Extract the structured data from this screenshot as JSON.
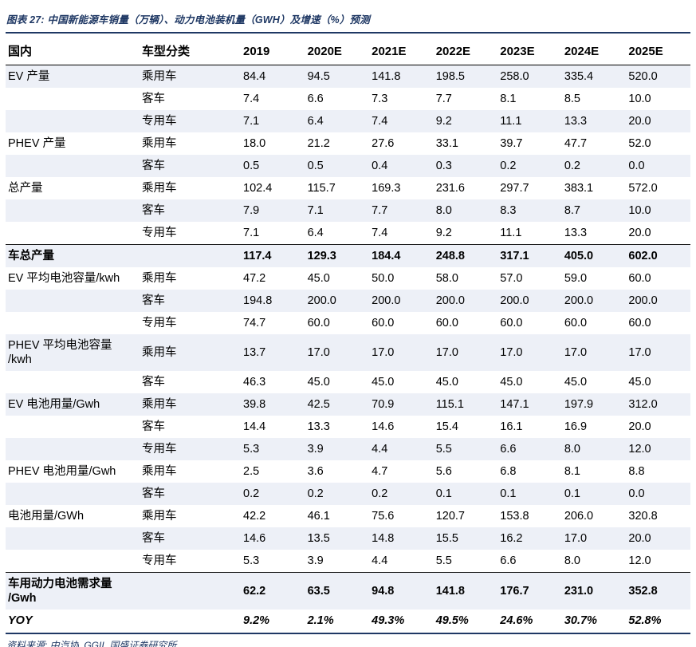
{
  "title": "图表 27:  中国新能源车销量（万辆）、动力电池装机量（GWH）及增速（%）预测",
  "source": "资料来源: 中汽协, GGII, 国盛证券研究所",
  "colors": {
    "accent": "#1f3864",
    "stripe": "#edf0f7",
    "text": "#000000",
    "rule": "#1a1a1a"
  },
  "chart_data": {
    "type": "table",
    "title": "中国新能源车销量（万辆）、动力电池装机量（GWH）及增速（%）预测",
    "headers": [
      "国内",
      "车型分类",
      "2019",
      "2020E",
      "2021E",
      "2022E",
      "2023E",
      "2024E",
      "2025E"
    ],
    "rows": [
      {
        "group": "EV 产量",
        "type": "乘用车",
        "values": [
          "84.4",
          "94.5",
          "141.8",
          "198.5",
          "258.0",
          "335.4",
          "520.0"
        ]
      },
      {
        "group": "",
        "type": "客车",
        "values": [
          "7.4",
          "6.6",
          "7.3",
          "7.7",
          "8.1",
          "8.5",
          "10.0"
        ]
      },
      {
        "group": "",
        "type": "专用车",
        "values": [
          "7.1",
          "6.4",
          "7.4",
          "9.2",
          "11.1",
          "13.3",
          "20.0"
        ]
      },
      {
        "group": "PHEV 产量",
        "type": "乘用车",
        "values": [
          "18.0",
          "21.2",
          "27.6",
          "33.1",
          "39.7",
          "47.7",
          "52.0"
        ]
      },
      {
        "group": "",
        "type": "客车",
        "values": [
          "0.5",
          "0.5",
          "0.4",
          "0.3",
          "0.2",
          "0.2",
          "0.0"
        ]
      },
      {
        "group": "总产量",
        "type": "乘用车",
        "values": [
          "102.4",
          "115.7",
          "169.3",
          "231.6",
          "297.7",
          "383.1",
          "572.0"
        ]
      },
      {
        "group": "",
        "type": "客车",
        "values": [
          "7.9",
          "7.1",
          "7.7",
          "8.0",
          "8.3",
          "8.7",
          "10.0"
        ]
      },
      {
        "group": "",
        "type": "专用车",
        "values": [
          "7.1",
          "6.4",
          "7.4",
          "9.2",
          "11.1",
          "13.3",
          "20.0"
        ]
      },
      {
        "group": "车总产量",
        "type": "",
        "values": [
          "117.4",
          "129.3",
          "184.4",
          "248.8",
          "317.1",
          "405.0",
          "602.0"
        ],
        "bold": true,
        "border_top": true
      },
      {
        "group": "EV 平均电池容量/kwh",
        "type": "乘用车",
        "values": [
          "47.2",
          "45.0",
          "50.0",
          "58.0",
          "57.0",
          "59.0",
          "60.0"
        ]
      },
      {
        "group": "",
        "type": "客车",
        "values": [
          "194.8",
          "200.0",
          "200.0",
          "200.0",
          "200.0",
          "200.0",
          "200.0"
        ]
      },
      {
        "group": "",
        "type": "专用车",
        "values": [
          "74.7",
          "60.0",
          "60.0",
          "60.0",
          "60.0",
          "60.0",
          "60.0"
        ]
      },
      {
        "group": "PHEV 平均电池容量\n/kwh",
        "type": "乘用车",
        "values": [
          "13.7",
          "17.0",
          "17.0",
          "17.0",
          "17.0",
          "17.0",
          "17.0"
        ]
      },
      {
        "group": "",
        "type": "客车",
        "values": [
          "46.3",
          "45.0",
          "45.0",
          "45.0",
          "45.0",
          "45.0",
          "45.0"
        ]
      },
      {
        "group": "EV 电池用量/Gwh",
        "type": "乘用车",
        "values": [
          "39.8",
          "42.5",
          "70.9",
          "115.1",
          "147.1",
          "197.9",
          "312.0"
        ]
      },
      {
        "group": "",
        "type": "客车",
        "values": [
          "14.4",
          "13.3",
          "14.6",
          "15.4",
          "16.1",
          "16.9",
          "20.0"
        ]
      },
      {
        "group": "",
        "type": "专用车",
        "values": [
          "5.3",
          "3.9",
          "4.4",
          "5.5",
          "6.6",
          "8.0",
          "12.0"
        ]
      },
      {
        "group": "PHEV 电池用量/Gwh",
        "type": "乘用车",
        "values": [
          "2.5",
          "3.6",
          "4.7",
          "5.6",
          "6.8",
          "8.1",
          "8.8"
        ]
      },
      {
        "group": "",
        "type": "客车",
        "values": [
          "0.2",
          "0.2",
          "0.2",
          "0.1",
          "0.1",
          "0.1",
          "0.0"
        ]
      },
      {
        "group": "电池用量/GWh",
        "type": "乘用车",
        "values": [
          "42.2",
          "46.1",
          "75.6",
          "120.7",
          "153.8",
          "206.0",
          "320.8"
        ]
      },
      {
        "group": "",
        "type": "客车",
        "values": [
          "14.6",
          "13.5",
          "14.8",
          "15.5",
          "16.2",
          "17.0",
          "20.0"
        ]
      },
      {
        "group": "",
        "type": "专用车",
        "values": [
          "5.3",
          "3.9",
          "4.4",
          "5.5",
          "6.6",
          "8.0",
          "12.0"
        ]
      },
      {
        "group": "车用动力电池需求量\n/Gwh",
        "type": "",
        "values": [
          "62.2",
          "63.5",
          "94.8",
          "141.8",
          "176.7",
          "231.0",
          "352.8"
        ],
        "bold": true,
        "border_top": true
      },
      {
        "group": "YOY",
        "type": "",
        "values": [
          "9.2%",
          "2.1%",
          "49.3%",
          "49.5%",
          "24.6%",
          "30.7%",
          "52.8%"
        ],
        "bold": true,
        "italic_values": true
      }
    ]
  }
}
